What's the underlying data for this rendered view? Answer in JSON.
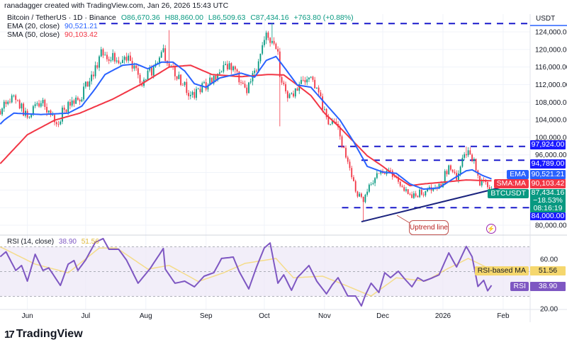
{
  "credit": "ranadagger created with TradingView.com, Jan 26, 2026 15:43 UTC",
  "legend": {
    "symbol": "Bitcoin / TetherUS · 1D · Binance",
    "open": "O86,670.36",
    "high": "H88,860.00",
    "low": "L86,509.63",
    "close": "C87,434.16",
    "change": "+763.80 (+0.88%)",
    "ema_label": "EMA (20, close)",
    "ema_value": "90,521.21",
    "sma_label": "SMA (50, close)",
    "sma_value": "90,103.42",
    "rsi_label": "RSI (14, close)",
    "rsi_value": "38.90",
    "rsi_ma_value": "51.56"
  },
  "axis": {
    "currency": "USDT",
    "price_ticks": [
      "124,000.00",
      "120,000.00",
      "116,000.00",
      "112,000.00",
      "108,000.00",
      "104,000.00",
      "100,000.00",
      "96,000.00",
      "80,000.00"
    ],
    "rsi_ticks": [
      "60.00",
      "20.00"
    ],
    "time_ticks": [
      {
        "label": "Jun",
        "date": "2025-06-01"
      },
      {
        "label": "Jul",
        "date": "2025-07-01"
      },
      {
        "label": "Aug",
        "date": "2025-08-01"
      },
      {
        "label": "Sep",
        "date": "2025-09-01"
      },
      {
        "label": "Oct",
        "date": "2025-10-01"
      },
      {
        "label": "Nov",
        "date": "2025-11-01"
      },
      {
        "label": "Dec",
        "date": "2025-12-01"
      },
      {
        "label": "2026",
        "date": "2026-01-01"
      },
      {
        "label": "Feb",
        "date": "2026-02-01"
      }
    ]
  },
  "tags": {
    "level_97924": "97,924.00",
    "level_94789": "94,789.00",
    "ema_name": "EMA",
    "ema": "90,521.21",
    "sma_name": "SMA:MA",
    "sma": "90,103.42",
    "symbol_name": "BTCUSDT",
    "price": "87,434.16",
    "price_change": "−18.53%",
    "countdown": "08:16:19",
    "level_84000": "84,000.00",
    "rsi_ma_name": "RSI-based MA",
    "rsi_ma": "51.56",
    "rsi_name": "RSI",
    "rsi": "38.90"
  },
  "annotation": "Uptrend line",
  "brand": "TradingView",
  "colors": {
    "up": "#089981",
    "down": "#f23645",
    "ema": "#2962ff",
    "sma": "#f23645",
    "levels": "#1a1acc",
    "trendline": "#1a237e",
    "rsi": "#7e57c2",
    "rsi_ma": "#f5d76e",
    "rsi_band": "#ede7f6"
  },
  "chart_data": [
    {
      "type": "candlestick",
      "title": "Bitcoin / TetherUS · 1D · Binance",
      "ylabel": "USDT",
      "ylim": [
        78000,
        126500
      ],
      "grid": true,
      "close_keypoints": [
        [
          "2025-05-18",
          106000
        ],
        [
          "2025-05-20",
          107100
        ],
        [
          "2025-05-25",
          109500
        ],
        [
          "2025-06-01",
          104700
        ],
        [
          "2025-06-08",
          108700
        ],
        [
          "2025-06-17",
          102200
        ],
        [
          "2025-06-19",
          106300
        ],
        [
          "2025-06-28",
          108700
        ],
        [
          "2025-07-06",
          116000
        ],
        [
          "2025-07-09",
          119200
        ],
        [
          "2025-07-17",
          117500
        ],
        [
          "2025-07-24",
          117500
        ],
        [
          "2025-07-30",
          112700
        ],
        [
          "2025-08-04",
          115100
        ],
        [
          "2025-08-09",
          120000
        ],
        [
          "2025-08-13",
          116700
        ],
        [
          "2025-08-19",
          112700
        ],
        [
          "2025-08-24",
          109500
        ],
        [
          "2025-08-30",
          111100
        ],
        [
          "2025-09-04",
          113500
        ],
        [
          "2025-09-15",
          116700
        ],
        [
          "2025-09-21",
          110300
        ],
        [
          "2025-09-26",
          114300
        ],
        [
          "2025-09-30",
          121600
        ],
        [
          "2025-10-03",
          123500
        ],
        [
          "2025-10-08",
          119200
        ],
        [
          "2025-10-09",
          112700
        ],
        [
          "2025-10-14",
          108700
        ],
        [
          "2025-10-20",
          111900
        ],
        [
          "2025-10-25",
          113500
        ],
        [
          "2025-10-31",
          107100
        ],
        [
          "2025-11-03",
          102200
        ],
        [
          "2025-11-07",
          103900
        ],
        [
          "2025-11-12",
          95000
        ],
        [
          "2025-11-18",
          86900
        ],
        [
          "2025-11-21",
          86100
        ],
        [
          "2025-11-25",
          90200
        ],
        [
          "2025-12-02",
          92600
        ],
        [
          "2025-12-08",
          90200
        ],
        [
          "2025-12-15",
          86900
        ],
        [
          "2025-12-22",
          87700
        ],
        [
          "2025-12-30",
          88500
        ],
        [
          "2026-01-04",
          93500
        ],
        [
          "2026-01-08",
          91000
        ],
        [
          "2026-01-13",
          96600
        ],
        [
          "2026-01-17",
          94200
        ],
        [
          "2026-01-20",
          89400
        ],
        [
          "2026-01-22",
          90200
        ],
        [
          "2026-01-26",
          87434.16
        ]
      ],
      "notable_wicks": [
        {
          "date": "2025-08-13",
          "high": 124400
        },
        {
          "date": "2025-10-05",
          "high": 126000
        },
        {
          "date": "2025-10-09",
          "low": 102500
        },
        {
          "date": "2025-11-21",
          "low": 80800
        },
        {
          "date": "2026-01-13",
          "high": 97900
        }
      ],
      "last": {
        "open": 86670.36,
        "high": 88860.0,
        "low": 86509.63,
        "close": 87434.16,
        "change": 763.8,
        "change_pct": 0.88
      },
      "series": [
        {
          "name": "EMA (20, close)",
          "type": "line",
          "points": [
            [
              "2025-05-18",
              103000
            ],
            [
              "2025-05-20",
              103900
            ],
            [
              "2025-05-25",
              105500
            ],
            [
              "2025-06-08",
              105200
            ],
            [
              "2025-06-22",
              105500
            ],
            [
              "2025-06-29",
              107100
            ],
            [
              "2025-07-06",
              111100
            ],
            [
              "2025-07-11",
              114300
            ],
            [
              "2025-07-20",
              116400
            ],
            [
              "2025-07-27",
              116700
            ],
            [
              "2025-08-02",
              115600
            ],
            [
              "2025-08-09",
              117100
            ],
            [
              "2025-08-15",
              117100
            ],
            [
              "2025-08-21",
              115100
            ],
            [
              "2025-08-26",
              112200
            ],
            [
              "2025-09-01",
              111400
            ],
            [
              "2025-09-08",
              113500
            ],
            [
              "2025-09-19",
              114600
            ],
            [
              "2025-09-26",
              113700
            ],
            [
              "2025-10-02",
              117500
            ],
            [
              "2025-10-07",
              118400
            ],
            [
              "2025-10-12",
              115500
            ],
            [
              "2025-10-18",
              111900
            ],
            [
              "2025-10-25",
              111400
            ],
            [
              "2025-11-01",
              107900
            ],
            [
              "2025-11-09",
              103900
            ],
            [
              "2025-11-16",
              99000
            ],
            [
              "2025-11-23",
              93400
            ],
            [
              "2025-12-01",
              92100
            ],
            [
              "2025-12-08",
              91800
            ],
            [
              "2025-12-15",
              89400
            ],
            [
              "2025-12-22",
              88200
            ],
            [
              "2025-12-30",
              88500
            ],
            [
              "2026-01-06",
              90500
            ],
            [
              "2026-01-13",
              92400
            ],
            [
              "2026-01-16",
              92600
            ],
            [
              "2026-01-21",
              91400
            ],
            [
              "2026-01-26",
              90521.21
            ]
          ]
        },
        {
          "name": "SMA (50, close)",
          "type": "line",
          "points": [
            [
              "2025-05-18",
              94000
            ],
            [
              "2025-06-01",
              100600
            ],
            [
              "2025-06-15",
              103900
            ],
            [
              "2025-06-28",
              105500
            ],
            [
              "2025-07-15",
              108700
            ],
            [
              "2025-07-30",
              112200
            ],
            [
              "2025-08-13",
              116000
            ],
            [
              "2025-08-24",
              116400
            ],
            [
              "2025-09-04",
              114300
            ],
            [
              "2025-09-19",
              113800
            ],
            [
              "2025-10-03",
              114300
            ],
            [
              "2025-10-11",
              114200
            ],
            [
              "2025-10-18",
              111900
            ],
            [
              "2025-10-25",
              109500
            ],
            [
              "2025-11-01",
              105500
            ],
            [
              "2025-11-09",
              102200
            ],
            [
              "2025-11-16",
              99000
            ],
            [
              "2025-11-23",
              95800
            ],
            [
              "2025-12-01",
              93400
            ],
            [
              "2025-12-08",
              91000
            ],
            [
              "2025-12-15",
              89000
            ],
            [
              "2025-12-22",
              89400
            ],
            [
              "2026-01-06",
              90000
            ],
            [
              "2026-01-13",
              90300
            ],
            [
              "2026-01-26",
              90103.42
            ]
          ]
        }
      ],
      "horizontal_levels": [
        {
          "value": 125900,
          "from": "2025-07-08"
        },
        {
          "value": 97924,
          "from": "2025-11-08"
        },
        {
          "value": 94789,
          "from": "2025-11-20"
        },
        {
          "value": 84000,
          "from": "2025-11-10"
        }
      ],
      "trendline": {
        "label": "Uptrend line",
        "from": [
          "2025-11-20",
          80800
        ],
        "to": [
          "2026-02-04",
          89050
        ]
      }
    },
    {
      "type": "line",
      "title": "RSI (14, close)",
      "ylim": [
        18,
        80
      ],
      "bands": {
        "upper": 70,
        "middle": 50,
        "lower": 30
      },
      "series": [
        {
          "name": "RSI",
          "points": [
            [
              "2025-05-18",
              62
            ],
            [
              "2025-05-21",
              66
            ],
            [
              "2025-05-26",
              50.9
            ],
            [
              "2025-05-29",
              54.9
            ],
            [
              "2025-06-01",
              42.3
            ],
            [
              "2025-06-05",
              64
            ],
            [
              "2025-06-09",
              50.9
            ],
            [
              "2025-06-12",
              53
            ],
            [
              "2025-06-18",
              38.8
            ],
            [
              "2025-06-22",
              56
            ],
            [
              "2025-06-25",
              58.9
            ],
            [
              "2025-06-27",
              50.9
            ],
            [
              "2025-07-01",
              59.4
            ],
            [
              "2025-07-06",
              73.7
            ],
            [
              "2025-07-10",
              76.6
            ],
            [
              "2025-07-13",
              68
            ],
            [
              "2025-07-18",
              68
            ],
            [
              "2025-07-22",
              59.4
            ],
            [
              "2025-07-28",
              40.6
            ],
            [
              "2025-08-03",
              52
            ],
            [
              "2025-08-10",
              68.6
            ],
            [
              "2025-08-11",
              52
            ],
            [
              "2025-08-16",
              40.6
            ],
            [
              "2025-08-21",
              42.3
            ],
            [
              "2025-08-26",
              37.7
            ],
            [
              "2025-08-31",
              46.3
            ],
            [
              "2025-09-05",
              49.1
            ],
            [
              "2025-09-09",
              60.6
            ],
            [
              "2025-09-15",
              61.7
            ],
            [
              "2025-09-18",
              50.3
            ],
            [
              "2025-09-23",
              36
            ],
            [
              "2025-09-27",
              53.7
            ],
            [
              "2025-10-01",
              69.1
            ],
            [
              "2025-10-04",
              73.1
            ],
            [
              "2025-10-08",
              40.6
            ],
            [
              "2025-10-11",
              47.4
            ],
            [
              "2025-10-15",
              34.9
            ],
            [
              "2025-10-18",
              45.1
            ],
            [
              "2025-10-24",
              54.9
            ],
            [
              "2025-10-28",
              42.3
            ],
            [
              "2025-11-02",
              32
            ],
            [
              "2025-11-05",
              39.4
            ],
            [
              "2025-11-08",
              45.1
            ],
            [
              "2025-11-13",
              30.3
            ],
            [
              "2025-11-17",
              30.3
            ],
            [
              "2025-11-20",
              22.3
            ],
            [
              "2025-11-22",
              30.9
            ],
            [
              "2025-11-25",
              40.6
            ],
            [
              "2025-11-29",
              33.1
            ],
            [
              "2025-12-02",
              49.1
            ],
            [
              "2025-12-05",
              45.1
            ],
            [
              "2025-12-09",
              50.3
            ],
            [
              "2025-12-12",
              44.6
            ],
            [
              "2025-12-16",
              37.7
            ],
            [
              "2025-12-19",
              45.1
            ],
            [
              "2025-12-22",
              42.3
            ],
            [
              "2025-12-26",
              44.6
            ],
            [
              "2025-12-30",
              47.4
            ],
            [
              "2026-01-04",
              65.1
            ],
            [
              "2026-01-08",
              53.7
            ],
            [
              "2026-01-13",
              70.3
            ],
            [
              "2026-01-16",
              62
            ],
            [
              "2026-01-19",
              38
            ],
            [
              "2026-01-22",
              43
            ],
            [
              "2026-01-24",
              34.5
            ],
            [
              "2026-01-26",
              38.9
            ]
          ]
        },
        {
          "name": "RSI-based MA",
          "points": [
            [
              "2025-05-18",
              70
            ],
            [
              "2025-06-05",
              56
            ],
            [
              "2025-06-22",
              49
            ],
            [
              "2025-07-08",
              69
            ],
            [
              "2025-07-17",
              69
            ],
            [
              "2025-08-02",
              52
            ],
            [
              "2025-08-13",
              55
            ],
            [
              "2025-08-28",
              42
            ],
            [
              "2025-09-10",
              49
            ],
            [
              "2025-09-21",
              56.6
            ],
            [
              "2025-10-07",
              60.6
            ],
            [
              "2025-10-16",
              45
            ],
            [
              "2025-10-31",
              46.3
            ],
            [
              "2025-11-12",
              38.8
            ],
            [
              "2025-11-25",
              30.3
            ],
            [
              "2025-12-08",
              45
            ],
            [
              "2025-12-23",
              42.3
            ],
            [
              "2026-01-03",
              52
            ],
            [
              "2026-01-14",
              60.6
            ],
            [
              "2026-01-26",
              51.56
            ]
          ]
        }
      ]
    }
  ]
}
